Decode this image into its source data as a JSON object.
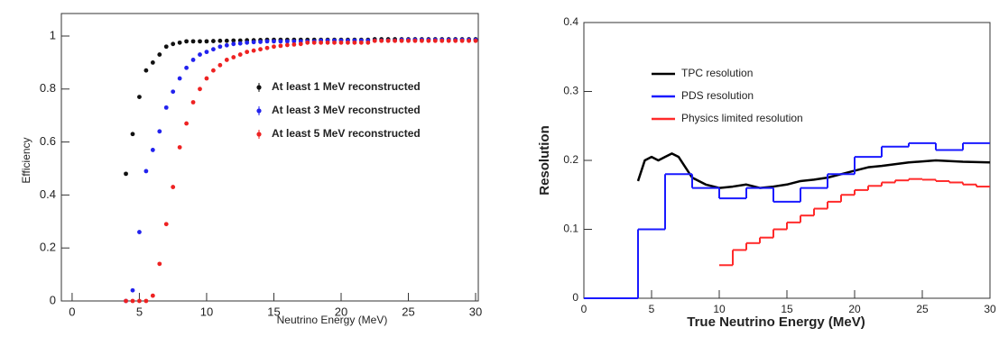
{
  "chart_data": [
    {
      "type": "scatter",
      "x_label": "Neutrino Energy (MeV)",
      "y_label": "Efficiency",
      "xlim": [
        -0.8,
        30.2
      ],
      "ylim": [
        0,
        1.085
      ],
      "xticks": [
        0,
        5,
        10,
        15,
        20,
        25,
        30
      ],
      "yticks": [
        0,
        0.2,
        0.4,
        0.6,
        0.8,
        1
      ],
      "x": [
        4,
        4.5,
        5,
        5.5,
        6,
        6.5,
        7,
        7.5,
        8,
        8.5,
        9,
        9.5,
        10,
        10.5,
        11,
        11.5,
        12,
        12.5,
        13,
        13.5,
        14,
        14.5,
        15,
        15.5,
        16,
        16.5,
        17,
        17.5,
        18,
        18.5,
        19,
        19.5,
        20,
        20.5,
        21,
        21.5,
        22,
        22.5,
        23,
        23.5,
        24,
        24.5,
        25,
        25.5,
        26,
        26.5,
        27,
        27.5,
        28,
        28.5,
        29,
        29.5,
        30
      ],
      "series": [
        {
          "name": "At least 1 MeV reconstructed",
          "color": "#111111",
          "values": [
            0.48,
            0.63,
            0.77,
            0.87,
            0.9,
            0.93,
            0.96,
            0.97,
            0.975,
            0.98,
            0.98,
            0.98,
            0.98,
            0.981,
            0.982,
            0.982,
            0.983,
            0.983,
            0.984,
            0.984,
            0.985,
            0.986,
            0.986,
            0.986,
            0.986,
            0.986,
            0.986,
            0.986,
            0.986,
            0.986,
            0.986,
            0.986,
            0.986,
            0.986,
            0.986,
            0.986,
            0.986,
            0.988,
            0.988,
            0.988,
            0.988,
            0.988,
            0.988,
            0.988,
            0.988,
            0.988,
            0.988,
            0.988,
            0.988,
            0.988,
            0.988,
            0.988,
            0.988
          ]
        },
        {
          "name": "At least 3 MeV reconstructed",
          "color": "#2222ee",
          "values": [
            0,
            0.04,
            0.26,
            0.49,
            0.57,
            0.64,
            0.73,
            0.79,
            0.84,
            0.88,
            0.91,
            0.93,
            0.94,
            0.95,
            0.96,
            0.965,
            0.97,
            0.972,
            0.975,
            0.977,
            0.978,
            0.98,
            0.98,
            0.98,
            0.98,
            0.98,
            0.98,
            0.98,
            0.98,
            0.983,
            0.983,
            0.983,
            0.983,
            0.983,
            0.983,
            0.983,
            0.983,
            0.983,
            0.983,
            0.983,
            0.983,
            0.986,
            0.986,
            0.986,
            0.986,
            0.986,
            0.986,
            0.986,
            0.986,
            0.986,
            0.986,
            0.986,
            0.986
          ]
        },
        {
          "name": "At least 5 MeV reconstructed",
          "color": "#ee2222",
          "values": [
            0,
            0,
            0,
            0,
            0.02,
            0.14,
            0.29,
            0.43,
            0.58,
            0.67,
            0.75,
            0.8,
            0.84,
            0.87,
            0.89,
            0.91,
            0.92,
            0.93,
            0.94,
            0.945,
            0.95,
            0.955,
            0.96,
            0.963,
            0.966,
            0.968,
            0.97,
            0.975,
            0.975,
            0.975,
            0.975,
            0.975,
            0.975,
            0.975,
            0.975,
            0.975,
            0.975,
            0.982,
            0.982,
            0.982,
            0.982,
            0.982,
            0.982,
            0.982,
            0.982,
            0.982,
            0.982,
            0.982,
            0.982,
            0.982,
            0.982,
            0.982,
            0.982
          ]
        }
      ]
    },
    {
      "type": "line",
      "x_label": "True Neutrino Energy (MeV)",
      "y_label": "Resolution",
      "xlim": [
        0,
        30
      ],
      "ylim": [
        0,
        0.4
      ],
      "xticks": [
        0,
        5,
        10,
        15,
        20,
        25,
        30
      ],
      "yticks": [
        0,
        0.1,
        0.2,
        0.3,
        0.4
      ],
      "series": [
        {
          "name": "TPC resolution",
          "color": "#000000",
          "x": [
            4,
            4.5,
            5,
            5.5,
            6,
            6.5,
            7,
            7.5,
            8,
            9,
            10,
            11,
            12,
            13,
            14,
            15,
            16,
            17,
            18,
            19,
            20,
            21,
            22,
            24,
            26,
            28,
            30
          ],
          "values": [
            0.17,
            0.2,
            0.205,
            0.2,
            0.205,
            0.21,
            0.205,
            0.19,
            0.175,
            0.165,
            0.16,
            0.162,
            0.165,
            0.16,
            0.162,
            0.165,
            0.17,
            0.172,
            0.175,
            0.18,
            0.185,
            0.19,
            0.192,
            0.197,
            0.2,
            0.198,
            0.197
          ]
        },
        {
          "name": "PDS resolution",
          "color": "#1a1aff",
          "bins": [
            0,
            4,
            6,
            8,
            10,
            12,
            14,
            16,
            18,
            20,
            22,
            24,
            26,
            28,
            30
          ],
          "values": [
            0,
            0.1,
            0.18,
            0.16,
            0.145,
            0.16,
            0.14,
            0.16,
            0.18,
            0.205,
            0.22,
            0.225,
            0.215,
            0.225
          ]
        },
        {
          "name": "Physics limited resolution",
          "color": "#ff2a2a",
          "bins": [
            10,
            11,
            12,
            13,
            14,
            15,
            16,
            17,
            18,
            19,
            20,
            21,
            22,
            23,
            24,
            25,
            26,
            27,
            28,
            29,
            30
          ],
          "values": [
            0.048,
            0.07,
            0.08,
            0.088,
            0.1,
            0.11,
            0.12,
            0.13,
            0.14,
            0.15,
            0.157,
            0.163,
            0.168,
            0.171,
            0.173,
            0.172,
            0.17,
            0.168,
            0.165,
            0.162
          ]
        }
      ]
    }
  ]
}
